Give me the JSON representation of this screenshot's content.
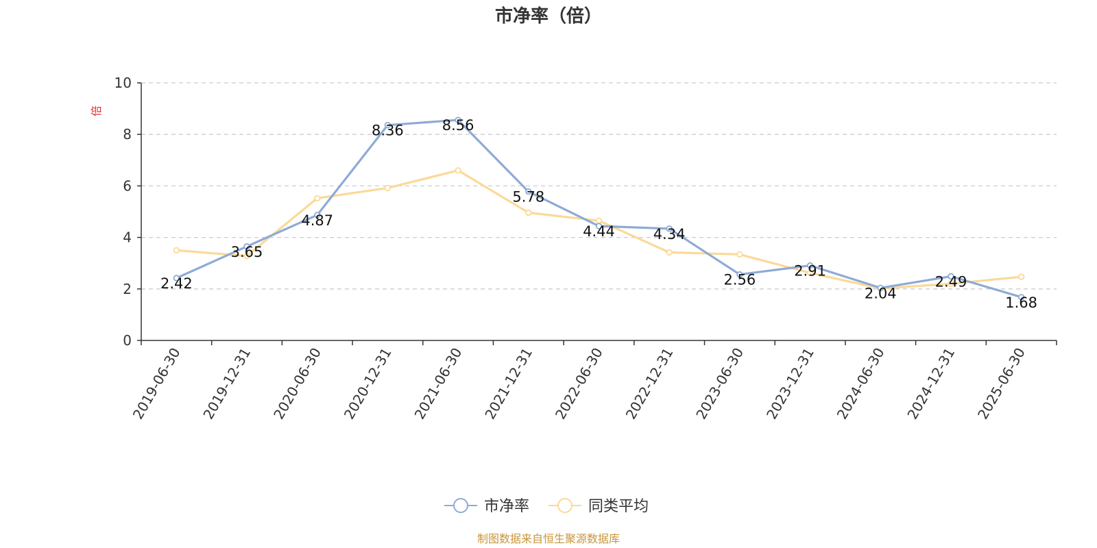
{
  "chart_data": {
    "type": "line",
    "title": "市净率（倍）",
    "ylabel": "倍",
    "ylim": [
      0,
      10
    ],
    "yticks": [
      0,
      2,
      4,
      6,
      8,
      10
    ],
    "grid": true,
    "legend_position": "bottom",
    "x": [
      "2019-06-30",
      "2019-12-31",
      "2020-06-30",
      "2020-12-31",
      "2021-06-30",
      "2021-12-31",
      "2022-06-30",
      "2022-12-31",
      "2023-06-30",
      "2023-12-31",
      "2024-06-30",
      "2024-12-31",
      "2025-06-30"
    ],
    "series": [
      {
        "name": "市净率",
        "color": "#8eaad6",
        "values": [
          2.42,
          3.65,
          4.87,
          8.36,
          8.56,
          5.78,
          4.44,
          4.34,
          2.56,
          2.91,
          2.04,
          2.49,
          1.68
        ],
        "labels": [
          "2.42",
          "3.65",
          "4.87",
          "8.36",
          "8.56",
          "5.78",
          "4.44",
          "4.34",
          "2.56",
          "2.91",
          "2.04",
          "2.49",
          "1.68"
        ]
      },
      {
        "name": "同类平均",
        "color": "#fbd998",
        "values": [
          3.5,
          3.28,
          5.52,
          5.92,
          6.6,
          4.96,
          4.65,
          3.42,
          3.34,
          2.62,
          2.02,
          2.2,
          2.47
        ]
      }
    ],
    "source": "制图数据来自恒生聚源数据库"
  }
}
